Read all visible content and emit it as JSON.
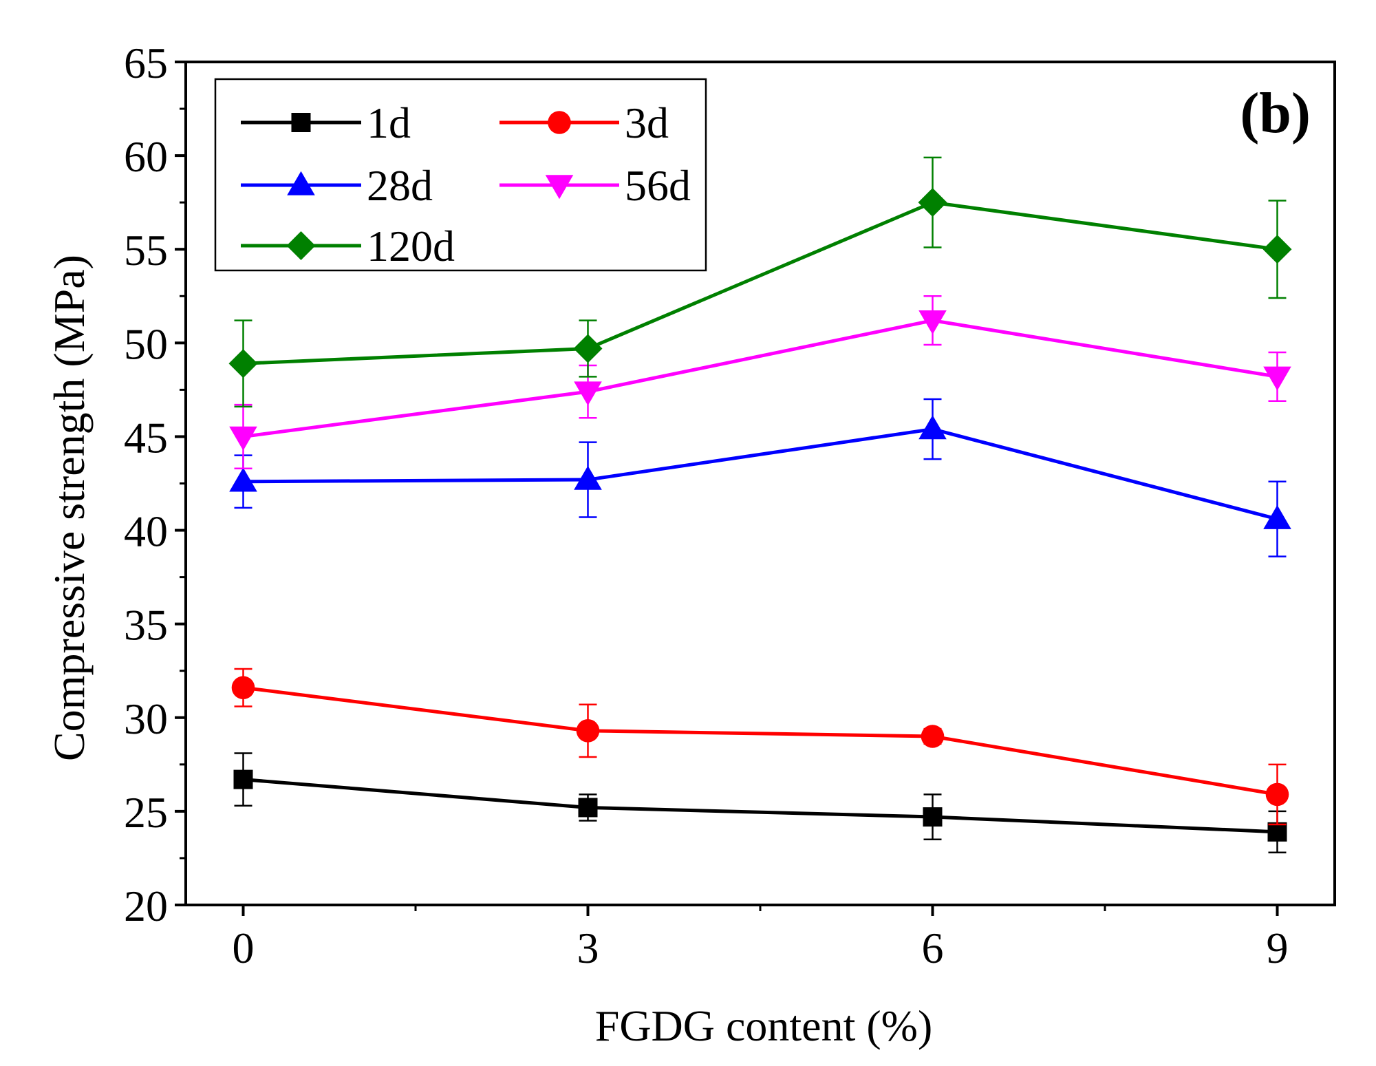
{
  "chart_data": {
    "type": "line",
    "panel_label": "(b)",
    "xlabel": "FGDG content (%)",
    "ylabel": "Compressive strength (MPa)",
    "x": [
      0,
      3,
      6,
      9
    ],
    "x_ticks": [
      "0",
      "3",
      "6",
      "9"
    ],
    "xlim": [
      -0.5,
      9.5
    ],
    "ylim": [
      20,
      65
    ],
    "y_ticks": [
      "20",
      "25",
      "30",
      "35",
      "40",
      "45",
      "50",
      "55",
      "60",
      "65"
    ],
    "legend_position": "top-left",
    "series": [
      {
        "name": "1d",
        "color": "#000000",
        "marker": "square",
        "values": [
          26.7,
          25.2,
          24.7,
          23.9
        ],
        "errors": [
          1.4,
          0.7,
          1.2,
          1.1
        ]
      },
      {
        "name": "3d",
        "color": "#ff0000",
        "marker": "circle",
        "values": [
          31.6,
          29.3,
          29.0,
          25.9
        ],
        "errors": [
          1.0,
          1.4,
          0.4,
          1.6
        ]
      },
      {
        "name": "28d",
        "color": "#0000ff",
        "marker": "triangle-up",
        "values": [
          42.6,
          42.7,
          45.4,
          40.6
        ],
        "errors": [
          1.4,
          2.0,
          1.6,
          2.0
        ]
      },
      {
        "name": "56d",
        "color": "#ff00ff",
        "marker": "triangle-down",
        "values": [
          45.0,
          47.4,
          51.2,
          48.2
        ],
        "errors": [
          1.7,
          1.4,
          1.3,
          1.3
        ]
      },
      {
        "name": "120d",
        "color": "#008000",
        "marker": "diamond",
        "values": [
          48.9,
          49.7,
          57.5,
          55.0
        ],
        "errors": [
          2.3,
          1.5,
          2.4,
          2.6
        ]
      }
    ]
  }
}
